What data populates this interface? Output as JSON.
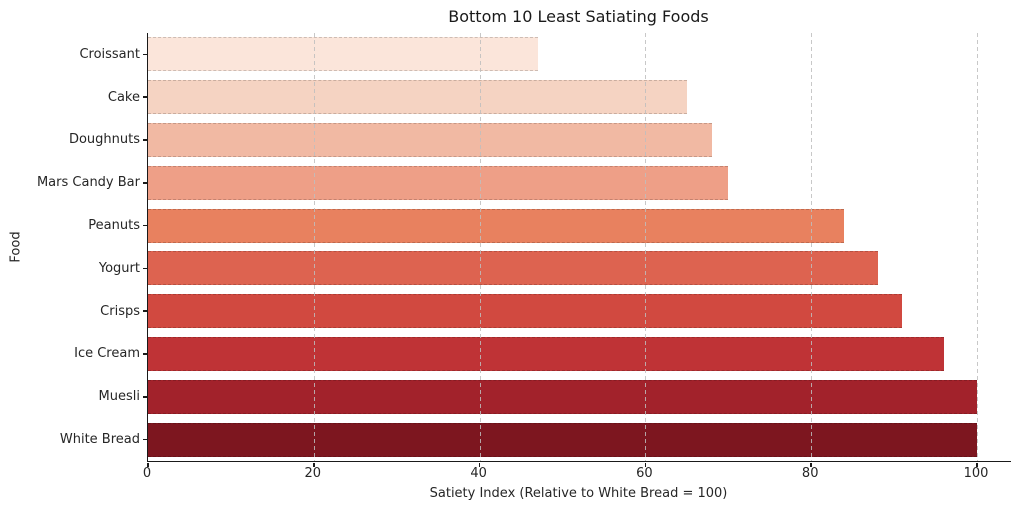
{
  "chart_data": {
    "type": "bar",
    "orientation": "horizontal",
    "title": "Bottom 10 Least Satiating Foods",
    "xlabel": "Satiety Index (Relative to White Bread = 100)",
    "ylabel": "Food",
    "categories": [
      "Croissant",
      "Cake",
      "Doughnuts",
      "Mars Candy Bar",
      "Peanuts",
      "Yogurt",
      "Crisps",
      "Ice Cream",
      "Muesli",
      "White Bread"
    ],
    "values": [
      47,
      65,
      68,
      70,
      84,
      88,
      91,
      96,
      100,
      100
    ],
    "bar_colors": [
      "#fbe5da",
      "#f5d3c2",
      "#f1b9a3",
      "#ee9f87",
      "#e8815f",
      "#dd6350",
      "#d14940",
      "#bf3336",
      "#a2222b",
      "#7d161f"
    ],
    "x_ticks": [
      0,
      20,
      40,
      60,
      80,
      100
    ],
    "xlim": [
      0,
      104.1
    ],
    "grid": "vertical-dashed",
    "legend": "none",
    "colormap": "Reds (light to dark)"
  }
}
